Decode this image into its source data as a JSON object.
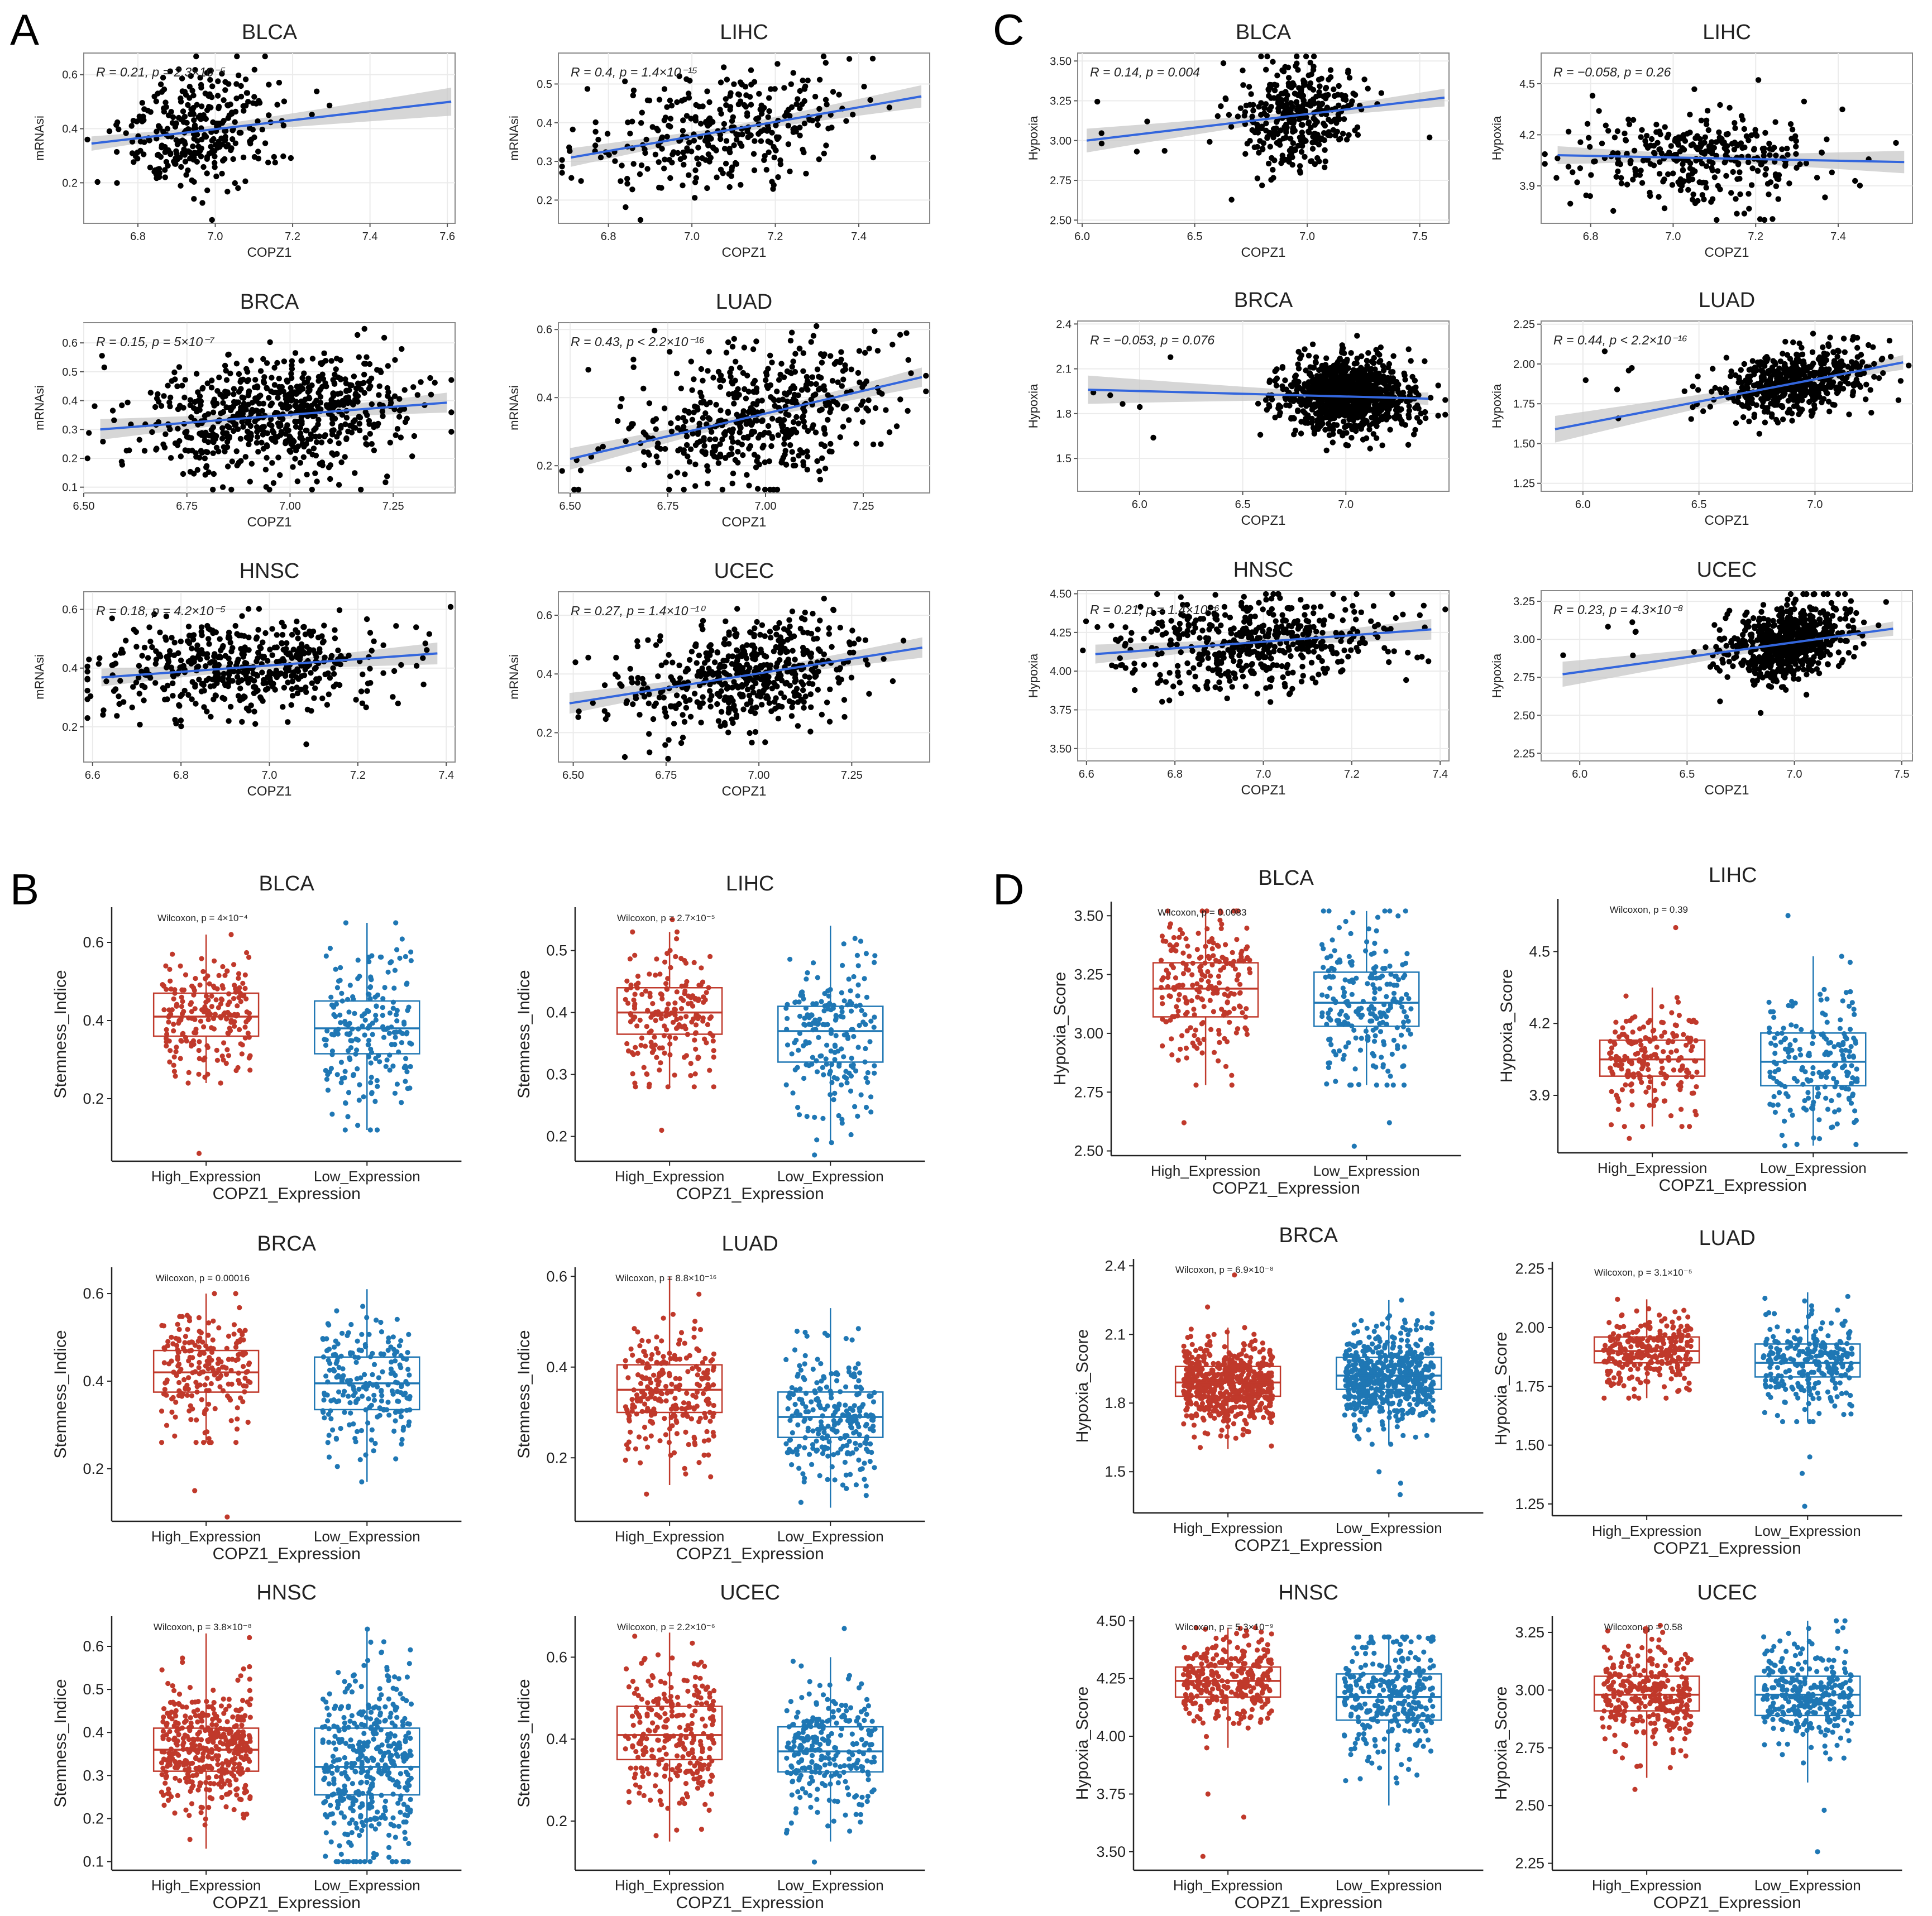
{
  "figure": {
    "panels": [
      {
        "label": "A",
        "kind": "scatter",
        "ylabel": "mRNAsi"
      },
      {
        "label": "B",
        "kind": "box",
        "ylabel": "Stemness_Indice"
      },
      {
        "label": "C",
        "kind": "scatter",
        "ylabel": "Hypoxia"
      },
      {
        "label": "D",
        "kind": "box",
        "ylabel": "Hypoxia_Score"
      }
    ],
    "group_labels": [
      "High_Expression",
      "Low_Expression"
    ],
    "group_axis_title": "COPZ1_Expression",
    "scatter_xlabel": "COPZ1",
    "colors": {
      "scatter_point": "#000000",
      "fit_line": "#3366dd",
      "ci_band": "#c8c8c8",
      "high": "#c0392b",
      "low": "#1f77b4",
      "panel_border": "#888888",
      "grid": "#ebebeb"
    }
  },
  "chart_data": [
    {
      "type": "scatter",
      "panel": "A",
      "title": "BLCA",
      "xlabel": "COPZ1",
      "ylabel": "mRNAsi",
      "stat": "R = 0.21, p = 2.3×10⁻⁵",
      "xlim": [
        6.66,
        7.62
      ],
      "ylim": [
        0.05,
        0.68
      ],
      "xticks": [
        "6.8",
        "7.0",
        "7.2",
        "7.4",
        "7.6"
      ],
      "yticks": [
        "0.2",
        "0.4",
        "0.6"
      ],
      "fit": [
        [
          6.68,
          0.345
        ],
        [
          7.61,
          0.5
        ]
      ],
      "center": [
        6.95,
        0.39
      ],
      "spread": [
        0.1,
        0.1
      ],
      "n": 320,
      "seed": 11
    },
    {
      "type": "scatter",
      "panel": "A",
      "title": "LIHC",
      "xlabel": "COPZ1",
      "ylabel": "mRNAsi",
      "stat": "R = 0.4, p = 1.4×10⁻¹⁵",
      "xlim": [
        6.68,
        7.57
      ],
      "ylim": [
        0.14,
        0.58
      ],
      "xticks": [
        "6.8",
        "7.0",
        "7.2",
        "7.4"
      ],
      "yticks": [
        "0.2",
        "0.3",
        "0.4",
        "0.5"
      ],
      "fit": [
        [
          6.71,
          0.31
        ],
        [
          7.55,
          0.468
        ]
      ],
      "center": [
        7.08,
        0.38
      ],
      "spread": [
        0.15,
        0.07
      ],
      "n": 330,
      "seed": 12
    },
    {
      "type": "scatter",
      "panel": "A",
      "title": "BRCA",
      "xlabel": "COPZ1",
      "ylabel": "mRNAsi",
      "stat": "R = 0.15, p = 5×10⁻⁷",
      "xlim": [
        6.5,
        7.4
      ],
      "ylim": [
        0.08,
        0.67
      ],
      "xticks": [
        "6.50",
        "6.75",
        "7.00",
        "7.25"
      ],
      "yticks": [
        "0.1",
        "0.2",
        "0.3",
        "0.4",
        "0.5",
        "0.6"
      ],
      "fit": [
        [
          6.54,
          0.3
        ],
        [
          7.38,
          0.393
        ]
      ],
      "center": [
        6.97,
        0.35
      ],
      "spread": [
        0.16,
        0.1
      ],
      "n": 700,
      "seed": 13
    },
    {
      "type": "scatter",
      "panel": "A",
      "title": "LUAD",
      "xlabel": "COPZ1",
      "ylabel": "mRNAsi",
      "stat": "R = 0.43, p < 2.2×10⁻¹⁶",
      "xlim": [
        6.47,
        7.42
      ],
      "ylim": [
        0.12,
        0.62
      ],
      "xticks": [
        "6.50",
        "6.75",
        "7.00",
        "7.25"
      ],
      "yticks": [
        "0.2",
        "0.4",
        "0.6"
      ],
      "fit": [
        [
          6.5,
          0.22
        ],
        [
          7.4,
          0.46
        ]
      ],
      "center": [
        6.98,
        0.33
      ],
      "spread": [
        0.17,
        0.1
      ],
      "n": 500,
      "seed": 14
    },
    {
      "type": "scatter",
      "panel": "A",
      "title": "HNSC",
      "xlabel": "COPZ1",
      "ylabel": "mRNAsi",
      "stat": "R = 0.18, p = 4.2×10⁻⁵",
      "xlim": [
        6.58,
        7.42
      ],
      "ylim": [
        0.08,
        0.66
      ],
      "xticks": [
        "6.6",
        "6.8",
        "7.0",
        "7.2",
        "7.4"
      ],
      "yticks": [
        "0.2",
        "0.4",
        "0.6"
      ],
      "fit": [
        [
          6.62,
          0.368
        ],
        [
          7.38,
          0.45
        ]
      ],
      "center": [
        6.95,
        0.4
      ],
      "spread": [
        0.16,
        0.08
      ],
      "n": 500,
      "seed": 15
    },
    {
      "type": "scatter",
      "panel": "A",
      "title": "UCEC",
      "xlabel": "COPZ1",
      "ylabel": "mRNAsi",
      "stat": "R = 0.27, p = 1.4×10⁻¹⁰",
      "xlim": [
        6.46,
        7.46
      ],
      "ylim": [
        0.1,
        0.68
      ],
      "xticks": [
        "6.50",
        "6.75",
        "7.00",
        "7.25"
      ],
      "yticks": [
        "0.2",
        "0.4",
        "0.6"
      ],
      "fit": [
        [
          6.49,
          0.3
        ],
        [
          7.44,
          0.49
        ]
      ],
      "center": [
        6.97,
        0.4
      ],
      "spread": [
        0.15,
        0.09
      ],
      "n": 520,
      "seed": 16
    },
    {
      "type": "scatter",
      "panel": "C",
      "title": "BLCA",
      "xlabel": "COPZ1",
      "ylabel": "Hypoxia",
      "stat": "R = 0.14, p = 0.004",
      "xlim": [
        5.98,
        7.63
      ],
      "ylim": [
        2.48,
        3.55
      ],
      "xticks": [
        "6.0",
        "6.5",
        "7.0",
        "7.5"
      ],
      "yticks": [
        "2.50",
        "2.75",
        "3.00",
        "3.25",
        "3.50"
      ],
      "fit": [
        [
          6.02,
          3.0
        ],
        [
          7.61,
          3.27
        ]
      ],
      "center": [
        6.96,
        3.15
      ],
      "spread": [
        0.14,
        0.17
      ],
      "n": 380,
      "seed": 21
    },
    {
      "type": "scatter",
      "panel": "C",
      "title": "LIHC",
      "xlabel": "COPZ1",
      "ylabel": "Hypoxia",
      "stat": "R = −0.058, p = 0.26",
      "xlim": [
        6.68,
        7.58
      ],
      "ylim": [
        3.68,
        4.68
      ],
      "xticks": [
        "6.8",
        "7.0",
        "7.2",
        "7.4"
      ],
      "yticks": [
        "3.9",
        "4.2",
        "4.5"
      ],
      "fit": [
        [
          6.72,
          4.08
        ],
        [
          7.56,
          4.04
        ]
      ],
      "center": [
        7.08,
        4.03
      ],
      "spread": [
        0.14,
        0.14
      ],
      "n": 340,
      "seed": 22
    },
    {
      "type": "scatter",
      "panel": "C",
      "title": "BRCA",
      "xlabel": "COPZ1",
      "ylabel": "Hypoxia",
      "stat": "R = −0.053, p = 0.076",
      "xlim": [
        5.7,
        7.5
      ],
      "ylim": [
        1.28,
        2.42
      ],
      "xticks": [
        "6.0",
        "6.5",
        "7.0"
      ],
      "yticks": [
        "1.5",
        "1.8",
        "2.1",
        "2.4"
      ],
      "fit": [
        [
          5.75,
          1.96
        ],
        [
          7.4,
          1.9
        ]
      ],
      "center": [
        7.0,
        1.92
      ],
      "spread": [
        0.15,
        0.12
      ],
      "n": 1000,
      "seed": 23
    },
    {
      "type": "scatter",
      "panel": "C",
      "title": "LUAD",
      "xlabel": "COPZ1",
      "ylabel": "Hypoxia",
      "stat": "R = 0.44, p < 2.2×10⁻¹⁶",
      "xlim": [
        5.82,
        7.42
      ],
      "ylim": [
        1.2,
        2.27
      ],
      "xticks": [
        "6.0",
        "6.5",
        "7.0"
      ],
      "yticks": [
        "1.25",
        "1.50",
        "1.75",
        "2.00",
        "2.25"
      ],
      "fit": [
        [
          5.88,
          1.59
        ],
        [
          7.38,
          2.01
        ]
      ],
      "center": [
        6.92,
        1.88
      ],
      "spread": [
        0.16,
        0.1
      ],
      "n": 560,
      "seed": 24
    },
    {
      "type": "scatter",
      "panel": "C",
      "title": "HNSC",
      "xlabel": "COPZ1",
      "ylabel": "Hypoxia",
      "stat": "R = 0.21, p = 1.4×10⁻⁶",
      "xlim": [
        6.58,
        7.42
      ],
      "ylim": [
        3.42,
        4.52
      ],
      "xticks": [
        "6.6",
        "6.8",
        "7.0",
        "7.2",
        "7.4"
      ],
      "yticks": [
        "3.50",
        "3.75",
        "4.00",
        "4.25",
        "4.50"
      ],
      "fit": [
        [
          6.62,
          4.11
        ],
        [
          7.38,
          4.27
        ]
      ],
      "center": [
        6.98,
        4.2
      ],
      "spread": [
        0.15,
        0.15
      ],
      "n": 500,
      "seed": 25
    },
    {
      "type": "scatter",
      "panel": "C",
      "title": "UCEC",
      "xlabel": "COPZ1",
      "ylabel": "Hypoxia",
      "stat": "R = 0.23, p = 4.3×10⁻⁸",
      "xlim": [
        5.82,
        7.55
      ],
      "ylim": [
        2.2,
        3.32
      ],
      "xticks": [
        "6.0",
        "6.5",
        "7.0",
        "7.5"
      ],
      "yticks": [
        "2.25",
        "2.50",
        "2.75",
        "3.00",
        "3.25"
      ],
      "fit": [
        [
          5.92,
          2.77
        ],
        [
          7.46,
          3.07
        ]
      ],
      "center": [
        6.97,
        2.97
      ],
      "spread": [
        0.14,
        0.12
      ],
      "n": 680,
      "seed": 26
    },
    {
      "type": "box",
      "panel": "B",
      "title": "BLCA",
      "ylabel": "Stemness_Indice",
      "xlabel": "COPZ1_Expression",
      "stat": "Wilcoxon, p = 4×10⁻⁴",
      "ylim": [
        0.04,
        0.69
      ],
      "yticks": [
        "0.2",
        "0.4",
        "0.6"
      ],
      "groups": [
        {
          "name": "High_Expression",
          "q1": 0.36,
          "median": 0.41,
          "q3": 0.47,
          "whisker_low": 0.24,
          "whisker_high": 0.62,
          "outliers": [
            0.06
          ]
        },
        {
          "name": "Low_Expression",
          "q1": 0.315,
          "median": 0.38,
          "q3": 0.45,
          "whisker_low": 0.12,
          "whisker_high": 0.65,
          "outliers": []
        }
      ],
      "n": 200,
      "seed": 31
    },
    {
      "type": "box",
      "panel": "B",
      "title": "LIHC",
      "ylabel": "Stemness_Indice",
      "xlabel": "COPZ1_Expression",
      "stat": "Wilcoxon, p = 2.7×10⁻⁵",
      "ylim": [
        0.16,
        0.57
      ],
      "yticks": [
        "0.2",
        "0.3",
        "0.4",
        "0.5"
      ],
      "groups": [
        {
          "name": "High_Expression",
          "q1": 0.365,
          "median": 0.4,
          "q3": 0.44,
          "whisker_low": 0.28,
          "whisker_high": 0.53,
          "outliers": [
            0.21,
            0.55
          ]
        },
        {
          "name": "Low_Expression",
          "q1": 0.32,
          "median": 0.37,
          "q3": 0.41,
          "whisker_low": 0.19,
          "whisker_high": 0.54,
          "outliers": [
            0.17
          ]
        }
      ],
      "n": 190,
      "seed": 32
    },
    {
      "type": "box",
      "panel": "B",
      "title": "BRCA",
      "ylabel": "Stemness_Indice",
      "xlabel": "COPZ1_Expression",
      "stat": "Wilcoxon, p = 0.00016",
      "ylim": [
        0.08,
        0.66
      ],
      "yticks": [
        "0.2",
        "0.4",
        "0.6"
      ],
      "groups": [
        {
          "name": "High_Expression",
          "q1": 0.375,
          "median": 0.42,
          "q3": 0.47,
          "whisker_low": 0.26,
          "whisker_high": 0.6,
          "outliers": [
            0.15,
            0.09
          ]
        },
        {
          "name": "Low_Expression",
          "q1": 0.335,
          "median": 0.395,
          "q3": 0.455,
          "whisker_low": 0.17,
          "whisker_high": 0.61,
          "outliers": []
        }
      ],
      "n": 210,
      "seed": 33
    },
    {
      "type": "box",
      "panel": "B",
      "title": "LUAD",
      "ylabel": "Stemness_Indice",
      "xlabel": "COPZ1_Expression",
      "stat": "Wilcoxon, p = 8.8×10⁻¹⁶",
      "ylim": [
        0.06,
        0.62
      ],
      "yticks": [
        "0.2",
        "0.4",
        "0.6"
      ],
      "groups": [
        {
          "name": "High_Expression",
          "q1": 0.3,
          "median": 0.35,
          "q3": 0.405,
          "whisker_low": 0.14,
          "whisker_high": 0.6,
          "outliers": [
            0.12
          ]
        },
        {
          "name": "Low_Expression",
          "q1": 0.245,
          "median": 0.29,
          "q3": 0.345,
          "whisker_low": 0.09,
          "whisker_high": 0.53,
          "outliers": []
        }
      ],
      "n": 250,
      "seed": 34
    },
    {
      "type": "box",
      "panel": "B",
      "title": "HNSC",
      "ylabel": "Stemness_Indice",
      "xlabel": "COPZ1_Expression",
      "stat": "Wilcoxon, p = 3.8×10⁻⁸",
      "ylim": [
        0.08,
        0.67
      ],
      "yticks": [
        "0.1",
        "0.2",
        "0.3",
        "0.4",
        "0.5",
        "0.6"
      ],
      "groups": [
        {
          "name": "High_Expression",
          "q1": 0.31,
          "median": 0.36,
          "q3": 0.41,
          "whisker_low": 0.13,
          "whisker_high": 0.63,
          "outliers": []
        },
        {
          "name": "Low_Expression",
          "q1": 0.255,
          "median": 0.32,
          "q3": 0.41,
          "whisker_low": 0.1,
          "whisker_high": 0.64,
          "outliers": []
        }
      ],
      "n": 420,
      "seed": 35
    },
    {
      "type": "box",
      "panel": "B",
      "title": "UCEC",
      "ylabel": "Stemness_Indice",
      "xlabel": "COPZ1_Expression",
      "stat": "Wilcoxon, p = 2.2×10⁻⁶",
      "ylim": [
        0.08,
        0.7
      ],
      "yticks": [
        "0.2",
        "0.4",
        "0.6"
      ],
      "groups": [
        {
          "name": "High_Expression",
          "q1": 0.35,
          "median": 0.41,
          "q3": 0.48,
          "whisker_low": 0.15,
          "whisker_high": 0.66,
          "outliers": []
        },
        {
          "name": "Low_Expression",
          "q1": 0.32,
          "median": 0.37,
          "q3": 0.43,
          "whisker_low": 0.15,
          "whisker_high": 0.6,
          "outliers": [
            0.1,
            0.67
          ]
        }
      ],
      "n": 260,
      "seed": 36
    },
    {
      "type": "box",
      "panel": "D",
      "title": "BLCA",
      "ylabel": "Hypoxia_Score",
      "xlabel": "COPZ1_Expression",
      "stat": "Wilcoxon, p = 0.0083",
      "ylim": [
        2.48,
        3.56
      ],
      "yticks": [
        "2.50",
        "2.75",
        "3.00",
        "3.25",
        "3.50"
      ],
      "groups": [
        {
          "name": "High_Expression",
          "q1": 3.07,
          "median": 3.19,
          "q3": 3.3,
          "whisker_low": 2.78,
          "whisker_high": 3.52,
          "outliers": [
            2.62
          ]
        },
        {
          "name": "Low_Expression",
          "q1": 3.03,
          "median": 3.13,
          "q3": 3.26,
          "whisker_low": 2.78,
          "whisker_high": 3.52,
          "outliers": [
            2.62,
            2.52
          ]
        }
      ],
      "n": 220,
      "seed": 41
    },
    {
      "type": "box",
      "panel": "D",
      "title": "LIHC",
      "ylabel": "Hypoxia_Score",
      "xlabel": "COPZ1_Expression",
      "stat": "Wilcoxon, p = 0.39",
      "ylim": [
        3.66,
        4.72
      ],
      "yticks": [
        "3.9",
        "4.2",
        "4.5"
      ],
      "groups": [
        {
          "name": "High_Expression",
          "q1": 3.98,
          "median": 4.05,
          "q3": 4.13,
          "whisker_low": 3.77,
          "whisker_high": 4.35,
          "outliers": [
            4.6,
            3.72
          ]
        },
        {
          "name": "Low_Expression",
          "q1": 3.94,
          "median": 4.04,
          "q3": 4.16,
          "whisker_low": 3.69,
          "whisker_high": 4.48,
          "outliers": [
            4.65
          ]
        }
      ],
      "n": 190,
      "seed": 42
    },
    {
      "type": "box",
      "panel": "D",
      "title": "BRCA",
      "ylabel": "Hypoxia_Score",
      "xlabel": "COPZ1_Expression",
      "stat": "Wilcoxon, p = 6.9×10⁻⁸",
      "ylim": [
        1.32,
        2.43
      ],
      "yticks": [
        "1.5",
        "1.8",
        "2.1",
        "2.4"
      ],
      "groups": [
        {
          "name": "High_Expression",
          "q1": 1.83,
          "median": 1.89,
          "q3": 1.96,
          "whisker_low": 1.6,
          "whisker_high": 2.13,
          "outliers": [
            2.36,
            2.22
          ]
        },
        {
          "name": "Low_Expression",
          "q1": 1.86,
          "median": 1.92,
          "q3": 2.0,
          "whisker_low": 1.62,
          "whisker_high": 2.25,
          "outliers": [
            1.4,
            1.45,
            1.5
          ]
        }
      ],
      "n": 560,
      "seed": 43
    },
    {
      "type": "box",
      "panel": "D",
      "title": "LUAD",
      "ylabel": "Hypoxia_Score",
      "xlabel": "COPZ1_Expression",
      "stat": "Wilcoxon, p = 3.1×10⁻⁵",
      "ylim": [
        1.2,
        2.28
      ],
      "yticks": [
        "1.25",
        "1.50",
        "1.75",
        "2.00",
        "2.25"
      ],
      "groups": [
        {
          "name": "High_Expression",
          "q1": 1.85,
          "median": 1.9,
          "q3": 1.96,
          "whisker_low": 1.7,
          "whisker_high": 2.12,
          "outliers": []
        },
        {
          "name": "Low_Expression",
          "q1": 1.79,
          "median": 1.85,
          "q3": 1.93,
          "whisker_low": 1.6,
          "whisker_high": 2.15,
          "outliers": [
            1.45,
            1.38,
            1.24
          ]
        }
      ],
      "n": 260,
      "seed": 44
    },
    {
      "type": "box",
      "panel": "D",
      "title": "HNSC",
      "ylabel": "Hypoxia_Score",
      "xlabel": "COPZ1_Expression",
      "stat": "Wilcoxon, p = 5.3×10⁻⁹",
      "ylim": [
        3.42,
        4.52
      ],
      "yticks": [
        "3.50",
        "3.75",
        "4.00",
        "4.25",
        "4.50"
      ],
      "groups": [
        {
          "name": "High_Expression",
          "q1": 4.17,
          "median": 4.24,
          "q3": 4.3,
          "whisker_low": 3.95,
          "whisker_high": 4.47,
          "outliers": [
            3.75,
            3.65,
            3.48
          ]
        },
        {
          "name": "Low_Expression",
          "q1": 4.07,
          "median": 4.17,
          "q3": 4.27,
          "whisker_low": 3.7,
          "whisker_high": 4.43,
          "outliers": []
        }
      ],
      "n": 300,
      "seed": 45
    },
    {
      "type": "box",
      "panel": "D",
      "title": "UCEC",
      "ylabel": "Hypoxia_Score",
      "xlabel": "COPZ1_Expression",
      "stat": "Wilcoxon, p = 0.58",
      "ylim": [
        2.22,
        3.32
      ],
      "yticks": [
        "2.25",
        "2.50",
        "2.75",
        "3.00",
        "3.25"
      ],
      "groups": [
        {
          "name": "High_Expression",
          "q1": 2.91,
          "median": 2.98,
          "q3": 3.06,
          "whisker_low": 2.62,
          "whisker_high": 3.28,
          "outliers": [
            2.57
          ]
        },
        {
          "name": "Low_Expression",
          "q1": 2.89,
          "median": 2.98,
          "q3": 3.06,
          "whisker_low": 2.6,
          "whisker_high": 3.3,
          "outliers": [
            2.3,
            2.48
          ]
        }
      ],
      "n": 300,
      "seed": 46
    }
  ]
}
